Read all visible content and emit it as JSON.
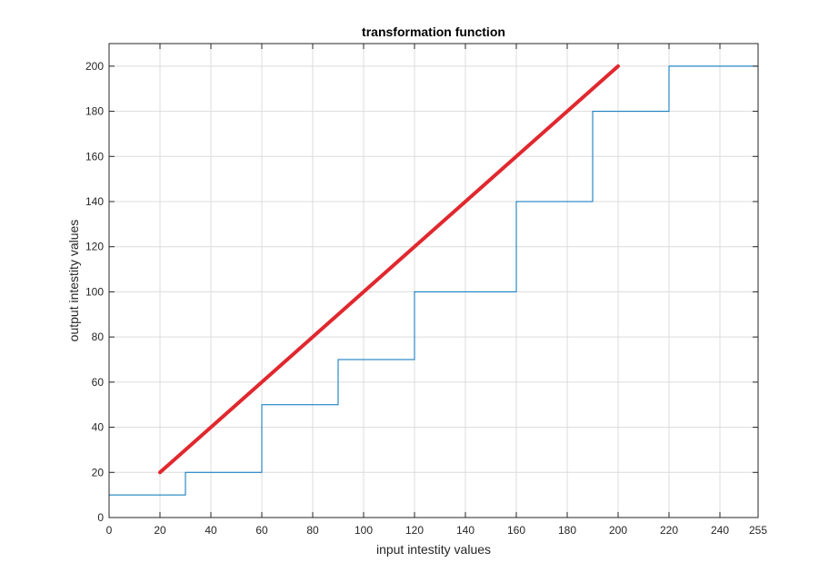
{
  "chart_data": {
    "type": "line",
    "title": "transformation function",
    "xlabel": "input intestity values",
    "ylabel": "output intestity values",
    "xlim": [
      0,
      255
    ],
    "ylim": [
      0,
      210
    ],
    "grid": true,
    "x_ticks": [
      0,
      20,
      40,
      60,
      80,
      100,
      120,
      140,
      160,
      180,
      200,
      220,
      240,
      255
    ],
    "y_ticks": [
      0,
      20,
      40,
      60,
      80,
      100,
      120,
      140,
      160,
      180,
      200
    ],
    "series": [
      {
        "style": "stairs",
        "color": "#0072BD",
        "x": [
          0,
          30,
          30,
          60,
          60,
          90,
          90,
          120,
          120,
          160,
          160,
          190,
          190,
          220,
          220,
          255
        ],
        "y": [
          10,
          10,
          20,
          20,
          50,
          50,
          70,
          70,
          100,
          100,
          140,
          140,
          180,
          180,
          200,
          200
        ]
      },
      {
        "style": "line",
        "color": "#E0282E",
        "x": [
          20,
          200
        ],
        "y": [
          20,
          200
        ]
      }
    ]
  }
}
